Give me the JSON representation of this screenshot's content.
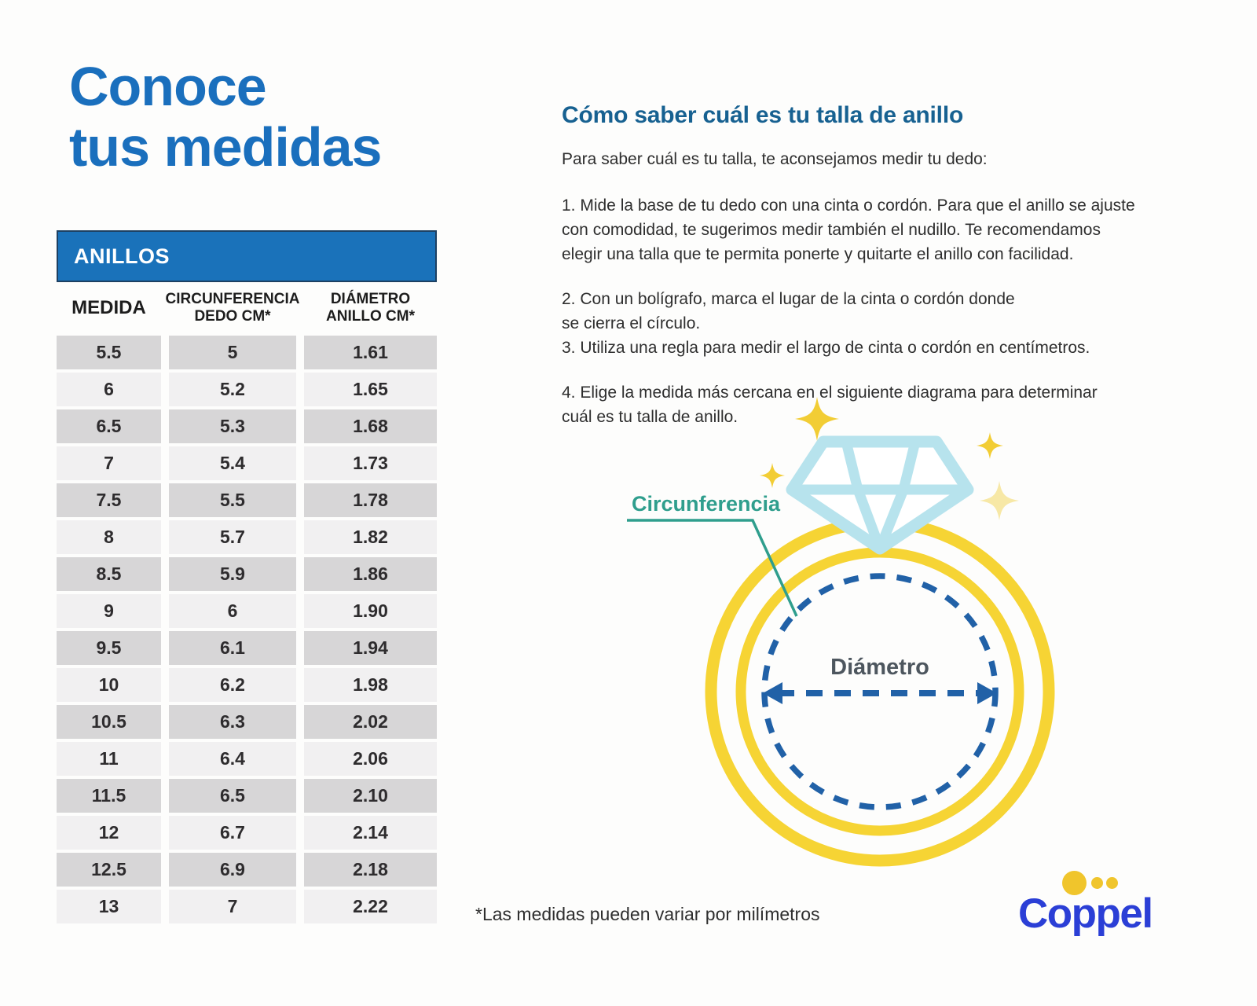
{
  "page": {
    "title_line1": "Conoce",
    "title_line2": "tus medidas",
    "footnote": "*Las medidas pueden variar por milímetros"
  },
  "table": {
    "header": "ANILLOS",
    "columns": [
      "MEDIDA",
      "CIRCUNFERENCIA\nDEDO CM*",
      "DIÁMETRO\nANILLO CM*"
    ],
    "rows": [
      [
        "5.5",
        "5",
        "1.61"
      ],
      [
        "6",
        "5.2",
        "1.65"
      ],
      [
        "6.5",
        "5.3",
        "1.68"
      ],
      [
        "7",
        "5.4",
        "1.73"
      ],
      [
        "7.5",
        "5.5",
        "1.78"
      ],
      [
        "8",
        "5.7",
        "1.82"
      ],
      [
        "8.5",
        "5.9",
        "1.86"
      ],
      [
        "9",
        "6",
        "1.90"
      ],
      [
        "9.5",
        "6.1",
        "1.94"
      ],
      [
        "10",
        "6.2",
        "1.98"
      ],
      [
        "10.5",
        "6.3",
        "2.02"
      ],
      [
        "11",
        "6.4",
        "2.06"
      ],
      [
        "11.5",
        "6.5",
        "2.10"
      ],
      [
        "12",
        "6.7",
        "2.14"
      ],
      [
        "12.5",
        "6.9",
        "2.18"
      ],
      [
        "13",
        "7",
        "2.22"
      ]
    ]
  },
  "instructions": {
    "heading": "Cómo saber cuál es tu talla de anillo",
    "intro": "Para saber cuál es tu talla, te aconsejamos medir tu dedo:",
    "steps": [
      "1. Mide la base de tu dedo con una cinta o cordón. Para que el anillo se ajuste\ncon comodidad, te sugerimos medir también el nudillo. Te recomendamos\nelegir una talla que te permita ponerte y quitarte el anillo con facilidad.",
      "2. Con un bolígrafo, marca el lugar de la cinta o cordón donde\nse cierra el círculo.",
      "3. Utiliza una regla para medir el largo de cinta o cordón en centímetros.",
      "4. Elige la medida más cercana en el siguiente diagrama para determinar\ncuál es tu talla de anillo."
    ]
  },
  "diagram": {
    "circumference_label": "Circunferencia",
    "diameter_label": "Diámetro"
  },
  "logo": {
    "text": "Coppel"
  },
  "colors": {
    "background": "#fdfdfc",
    "title_blue": "#1a6fbd",
    "bar_blue": "#1a72ba",
    "bar_border": "#1d4062",
    "heading_blue": "#176191",
    "row_dark": "#d7d6d7",
    "row_light": "#f1f0f1",
    "cell_text": "#2e2c2e",
    "body_text": "#2e2e2e",
    "teal": "#2f9e8d",
    "ring_yellow": "#f6d434",
    "diamond_blue": "#b7e3ed",
    "dashed_blue": "#2161a7",
    "diameter_text": "#4d565e",
    "sparkle_bright": "#f2cd35",
    "sparkle_pale": "#f7e8a6",
    "logo_blue": "#2b3fd6",
    "dot_yellow": "#f0c52c"
  }
}
